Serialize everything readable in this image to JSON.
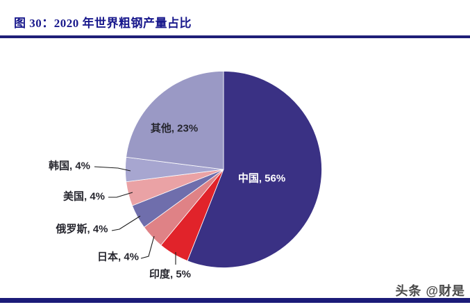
{
  "header": {
    "title": "图 30：2020 年世界粗钢产量占比"
  },
  "watermark": {
    "text": "头条 @财是"
  },
  "colors": {
    "title_text": "#18188c",
    "title_rule": "#1f1f78",
    "bottom_bar": "#1b1b78",
    "leader_line": "#1a1a1a"
  },
  "chart_data": {
    "type": "pie",
    "title": "2020 年世界粗钢产量占比",
    "unit": "%",
    "direction": "clockwise",
    "start_angle_deg": 0,
    "legend": "none",
    "categories": [
      "中国",
      "印度",
      "日本",
      "俄罗斯",
      "美国",
      "韩国",
      "其他"
    ],
    "values": [
      56,
      5,
      4,
      4,
      4,
      4,
      23
    ],
    "slices": [
      {
        "key": "china",
        "name": "中国",
        "value": 56,
        "label": "中国, 56%",
        "color": "#3a3184",
        "label_placement": "inside",
        "label_color": "#ffffff"
      },
      {
        "key": "india",
        "name": "印度",
        "value": 5,
        "label": "印度, 5%",
        "color": "#e1232a",
        "label_placement": "outside",
        "label_color": "#26262e"
      },
      {
        "key": "japan",
        "name": "日本",
        "value": 4,
        "label": "日本, 4%",
        "color": "#df8286",
        "label_placement": "outside",
        "label_color": "#26262e"
      },
      {
        "key": "russia",
        "name": "俄罗斯",
        "value": 4,
        "label": "俄罗斯, 4%",
        "color": "#6f6eac",
        "label_placement": "outside",
        "label_color": "#26262e"
      },
      {
        "key": "usa",
        "name": "美国",
        "value": 4,
        "label": "美国, 4%",
        "color": "#eaa2a5",
        "label_placement": "outside",
        "label_color": "#26262e"
      },
      {
        "key": "korea",
        "name": "韩国",
        "value": 4,
        "label": "韩国, 4%",
        "color": "#a7a6d0",
        "label_placement": "outside",
        "label_color": "#26262e"
      },
      {
        "key": "others",
        "name": "其他",
        "value": 23,
        "label": "其他, 23%",
        "color": "#9a99c5",
        "label_placement": "inside",
        "label_color": "#26262e"
      }
    ]
  }
}
